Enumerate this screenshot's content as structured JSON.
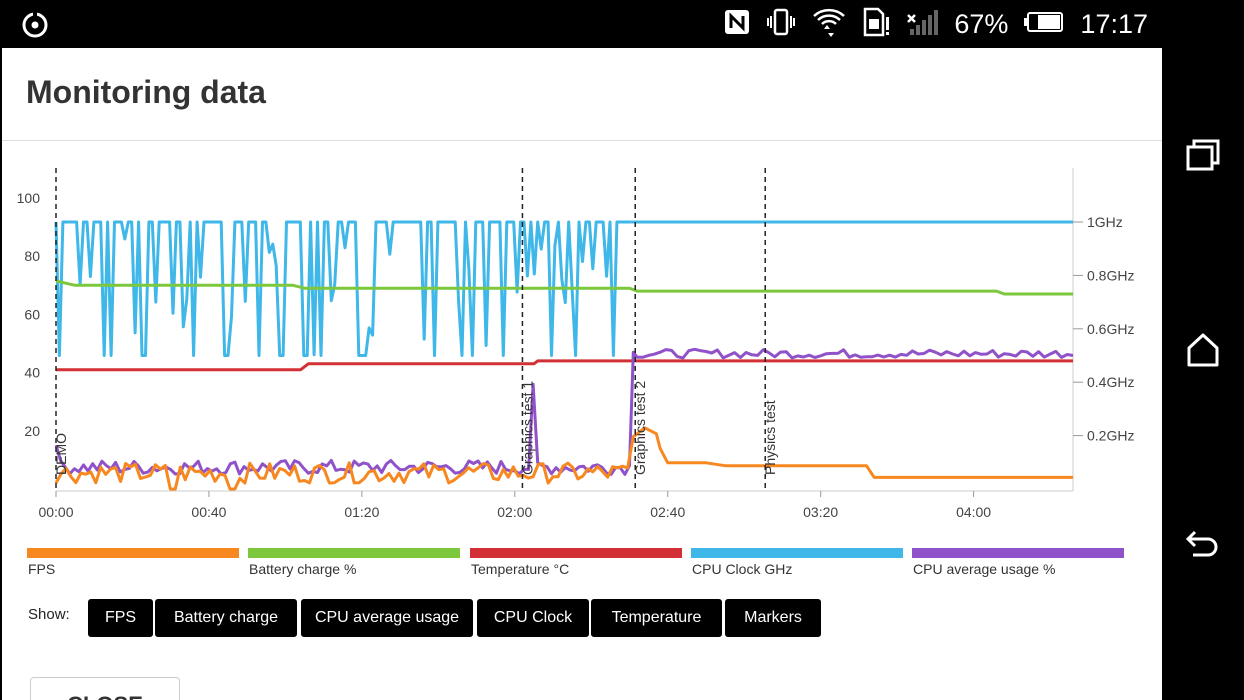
{
  "status_bar": {
    "battery_percent": "67%",
    "time": "17:17",
    "icons": [
      "camera-lens-icon",
      "nfc-icon",
      "vibrate-icon",
      "wifi-icon",
      "sim-alert-icon",
      "signal-no-service-icon",
      "battery-icon"
    ]
  },
  "title": "Monitoring data",
  "chart_data": {
    "type": "line",
    "x_ticks": [
      "00:00",
      "00:40",
      "01:20",
      "02:00",
      "02:40",
      "03:20",
      "04:00"
    ],
    "y_left_ticks": [
      "20",
      "40",
      "60",
      "80",
      "100"
    ],
    "y_right_ticks": [
      "0.2GHz",
      "0.4GHz",
      "0.6GHz",
      "0.8GHz",
      "1GHz"
    ],
    "markers": [
      "DEMO",
      "Graphics test 1",
      "Graphics test 2",
      "Physics test"
    ],
    "series": [
      {
        "name": "FPS",
        "color": "#f7881f"
      },
      {
        "name": "Battery charge %",
        "color": "#7dc73d"
      },
      {
        "name": "Temperature °C",
        "color": "#d23034"
      },
      {
        "name": "CPU Clock GHz",
        "color": "#3fb7e8"
      },
      {
        "name": "CPU average usage %",
        "color": "#8f52c9"
      }
    ]
  },
  "show": {
    "label": "Show:",
    "buttons": [
      "FPS",
      "Battery charge",
      "CPU average usage",
      "CPU Clock",
      "Temperature",
      "Markers"
    ]
  },
  "close_label": "CLOSE"
}
